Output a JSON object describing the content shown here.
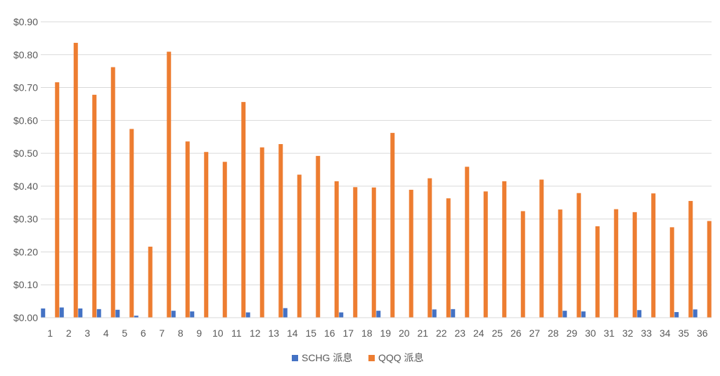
{
  "chart_data": {
    "type": "bar",
    "title": "",
    "xlabel": "",
    "ylabel": "",
    "ylim": [
      0,
      0.9
    ],
    "ytick_step": 0.1,
    "ytick_format": "currency_2dp",
    "grid": "horizontal",
    "legend_position": "bottom-center",
    "categories": [
      "1",
      "2",
      "3",
      "4",
      "5",
      "6",
      "7",
      "8",
      "9",
      "10",
      "11",
      "12",
      "13",
      "14",
      "15",
      "16",
      "17",
      "18",
      "19",
      "20",
      "21",
      "22",
      "23",
      "24",
      "25",
      "26",
      "27",
      "28",
      "29",
      "30",
      "31",
      "32",
      "33",
      "34",
      "35",
      "36"
    ],
    "series": [
      {
        "name": "SCHG 派息",
        "color": "#4472C4",
        "values": [
          0.028,
          0.031,
          0.028,
          0.026,
          0.024,
          0.006,
          0,
          0.021,
          0.019,
          0,
          0,
          0.016,
          0,
          0.029,
          0,
          0,
          0.016,
          0,
          0.021,
          0,
          0,
          0.025,
          0.026,
          0,
          0,
          0,
          0,
          0,
          0.021,
          0.019,
          0,
          0,
          0.023,
          0,
          0.017,
          0.025
        ]
      },
      {
        "name": "QQQ 派息",
        "color": "#ED7D31",
        "values": [
          0.716,
          0.836,
          0.678,
          0.762,
          0.574,
          0.216,
          0.809,
          0.536,
          0.504,
          0.474,
          0.656,
          0.518,
          0.528,
          0.435,
          0.492,
          0.415,
          0.397,
          0.396,
          0.562,
          0.389,
          0.424,
          0.363,
          0.459,
          0.384,
          0.415,
          0.324,
          0.42,
          0.329,
          0.379,
          0.278,
          0.33,
          0.321,
          0.378,
          0.275,
          0.355,
          0.294
        ]
      }
    ]
  }
}
